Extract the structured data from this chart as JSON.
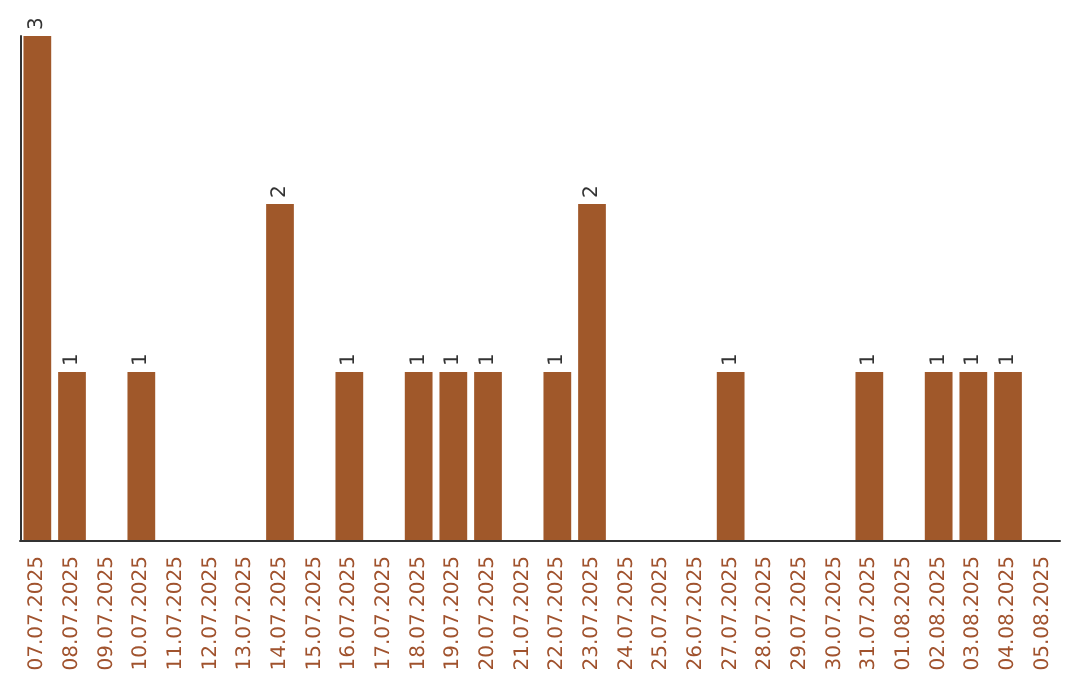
{
  "chart_data": {
    "type": "bar",
    "categories": [
      "07.07.2025",
      "08.07.2025",
      "09.07.2025",
      "10.07.2025",
      "11.07.2025",
      "12.07.2025",
      "13.07.2025",
      "14.07.2025",
      "15.07.2025",
      "16.07.2025",
      "17.07.2025",
      "18.07.2025",
      "19.07.2025",
      "20.07.2025",
      "21.07.2025",
      "22.07.2025",
      "23.07.2025",
      "24.07.2025",
      "25.07.2025",
      "26.07.2025",
      "27.07.2025",
      "28.07.2025",
      "29.07.2025",
      "30.07.2025",
      "31.07.2025",
      "01.08.2025",
      "02.08.2025",
      "03.08.2025",
      "04.08.2025",
      "05.08.2025"
    ],
    "values": [
      3,
      1,
      0,
      1,
      0,
      0,
      0,
      2,
      0,
      1,
      0,
      1,
      1,
      1,
      0,
      1,
      2,
      0,
      0,
      0,
      1,
      0,
      0,
      0,
      1,
      0,
      1,
      1,
      1,
      0
    ],
    "value_labels": [
      "3",
      "1",
      null,
      "1",
      null,
      null,
      null,
      "2",
      null,
      "1",
      null,
      "1",
      "1",
      "1",
      null,
      "1",
      "2",
      null,
      null,
      null,
      "1",
      null,
      null,
      null,
      "1",
      null,
      "1",
      "1",
      "1",
      null
    ],
    "color": "#a0582a"
  }
}
